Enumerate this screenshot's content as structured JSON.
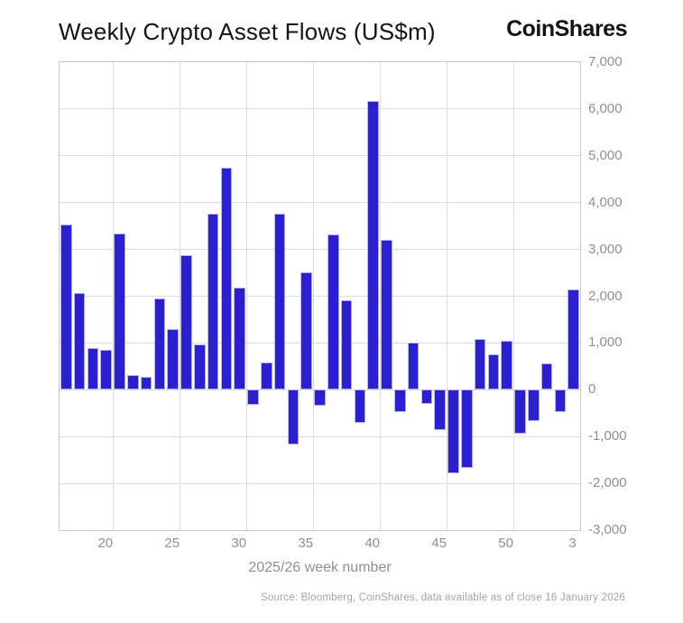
{
  "header": {
    "title": "Weekly Crypto Asset Flows (US$m)",
    "logo": "CoinShares"
  },
  "chart_data": {
    "type": "bar",
    "title": "Weekly Crypto Asset Flows (US$m)",
    "xlabel": "2025/26 week number",
    "ylabel": "",
    "ylim": [
      -3000,
      7000
    ],
    "ytick_step": 1000,
    "grid": true,
    "legend": "none",
    "bar_color": "#2a20cf",
    "categories": [
      "17",
      "18",
      "19",
      "20",
      "21",
      "22",
      "23",
      "24",
      "25",
      "26",
      "27",
      "28",
      "29",
      "30",
      "31",
      "32",
      "33",
      "34",
      "35",
      "36",
      "37",
      "38",
      "39",
      "40",
      "41",
      "42",
      "43",
      "44",
      "45",
      "46",
      "47",
      "48",
      "49",
      "50",
      "51",
      "52",
      "1",
      "2",
      "3"
    ],
    "values": [
      3530,
      2060,
      900,
      850,
      3340,
      310,
      270,
      1960,
      1290,
      2880,
      960,
      3760,
      4740,
      2190,
      -330,
      590,
      3770,
      -1170,
      2520,
      -340,
      3320,
      1920,
      -710,
      6170,
      3210,
      -480,
      1000,
      -310,
      -860,
      -1780,
      -1680,
      1090,
      750,
      1050,
      -940,
      -660,
      560,
      -470,
      2150
    ],
    "xticks": [
      "20",
      "25",
      "30",
      "35",
      "40",
      "45",
      "50",
      "3"
    ],
    "yticks": [
      "7,000",
      "6,000",
      "5,000",
      "4,000",
      "3,000",
      "2,000",
      "1,000",
      "0",
      "-1,000",
      "-2,000",
      "-3,000"
    ]
  },
  "footer": {
    "source": "Source: Bloomberg, CoinShares, data available as of close 16 January 2026"
  }
}
